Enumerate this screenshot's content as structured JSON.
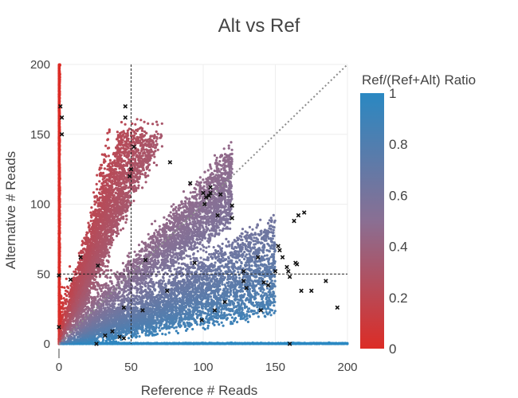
{
  "chart_data": {
    "type": "scatter",
    "title": "Alt vs Ref",
    "xlabel": "Reference # Reads",
    "ylabel": "Alternative # Reads",
    "xlim": [
      0,
      200
    ],
    "ylim": [
      0,
      200
    ],
    "xticks": [
      "0",
      "50",
      "100",
      "150",
      "200"
    ],
    "yticks": [
      "0",
      "50",
      "100",
      "150",
      "200"
    ],
    "colorbar": {
      "title": "Ref/(Ref+Alt) Ratio",
      "ticks": [
        "0",
        "0.2",
        "0.4",
        "0.6",
        "0.8",
        "1"
      ],
      "range": [
        0,
        1
      ],
      "low_color": "#dc2c26",
      "mid_color": "#8a6f93",
      "high_color": "#2a88c2"
    },
    "reference_lines": {
      "vertical_x": 50,
      "horizontal_y": 50,
      "diagonal": "y = x"
    },
    "grid": true,
    "marked_points": [
      [
        1,
        170
      ],
      [
        2,
        162
      ],
      [
        2,
        150
      ],
      [
        0,
        49
      ],
      [
        0,
        12
      ],
      [
        8,
        46
      ],
      [
        15,
        62
      ],
      [
        26,
        0
      ],
      [
        27,
        56
      ],
      [
        32,
        6
      ],
      [
        37,
        9
      ],
      [
        42,
        5
      ],
      [
        45,
        26
      ],
      [
        45,
        4
      ],
      [
        46,
        162
      ],
      [
        46,
        170
      ],
      [
        49,
        120
      ],
      [
        50,
        125
      ],
      [
        52,
        141
      ],
      [
        58,
        24
      ],
      [
        60,
        60
      ],
      [
        75,
        38
      ],
      [
        77,
        130
      ],
      [
        91,
        115
      ],
      [
        94,
        58
      ],
      [
        99,
        17
      ],
      [
        100,
        108
      ],
      [
        101,
        100
      ],
      [
        102,
        105
      ],
      [
        104,
        106
      ],
      [
        105,
        112
      ],
      [
        105,
        108
      ],
      [
        108,
        24
      ],
      [
        110,
        92
      ],
      [
        112,
        107
      ],
      [
        115,
        30
      ],
      [
        120,
        99
      ],
      [
        120,
        90
      ],
      [
        128,
        45
      ],
      [
        128,
        52
      ],
      [
        130,
        40
      ],
      [
        138,
        62
      ],
      [
        140,
        24
      ],
      [
        142,
        44
      ],
      [
        145,
        42
      ],
      [
        150,
        52
      ],
      [
        152,
        70
      ],
      [
        153,
        67
      ],
      [
        155,
        62
      ],
      [
        158,
        55
      ],
      [
        159,
        52
      ],
      [
        160,
        48
      ],
      [
        160,
        0
      ],
      [
        163,
        88
      ],
      [
        164,
        58
      ],
      [
        165,
        57
      ],
      [
        166,
        92
      ],
      [
        168,
        38
      ],
      [
        170,
        94
      ],
      [
        175,
        38
      ],
      [
        185,
        45
      ],
      [
        193,
        26
      ]
    ]
  }
}
